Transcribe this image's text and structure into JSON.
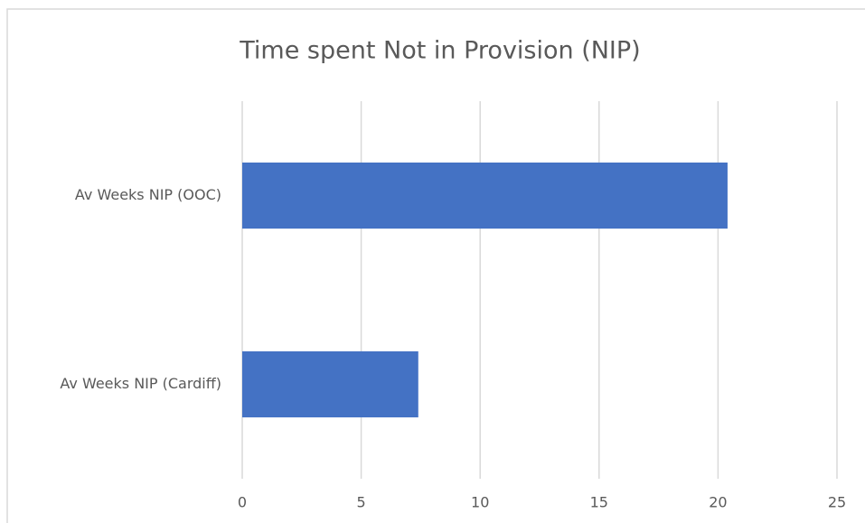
{
  "chart_data": {
    "type": "barh",
    "title": "Time spent Not in Provision (NIP)",
    "categories": [
      "Av Weeks NIP (OOC)",
      "Av Weeks NIP (Cardiff)"
    ],
    "values": [
      20.4,
      7.4
    ],
    "color": "#4472c4",
    "xlim": [
      0,
      25
    ],
    "xticks": [
      0,
      5,
      10,
      15,
      20,
      25
    ],
    "grid": true
  }
}
